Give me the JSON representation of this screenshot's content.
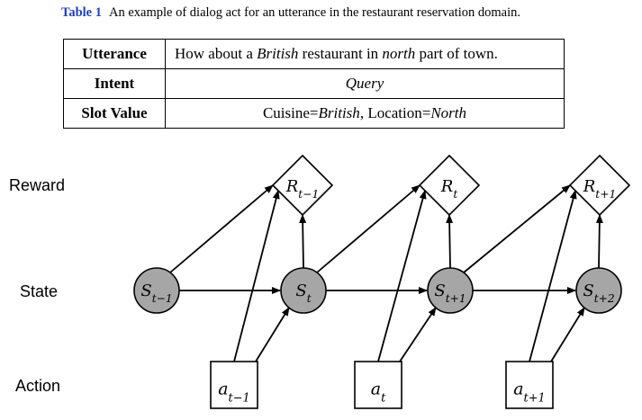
{
  "caption": {
    "label": "Table 1",
    "text": "An example of dialog act for an utterance in the restaurant reservation domain."
  },
  "table": {
    "utterance": {
      "header": "Utterance",
      "part1": "How about a ",
      "cuisine": "British",
      "part2": " restaurant in ",
      "location": "north",
      "part3": " part of town."
    },
    "intent": {
      "header": "Intent",
      "value": "Query"
    },
    "slot": {
      "header": "Slot Value",
      "cuisine_key": "Cuisine=",
      "cuisine_val": "British",
      "sep": ", ",
      "location_key": "Location=",
      "location_val": "North"
    }
  },
  "diagram": {
    "row_labels": {
      "reward": "Reward",
      "state": "State",
      "action": "Action"
    },
    "states": [
      {
        "base": "S",
        "sub": "t−1"
      },
      {
        "base": "S",
        "sub": "t"
      },
      {
        "base": "S",
        "sub": "t+1"
      },
      {
        "base": "S",
        "sub": "t+2"
      }
    ],
    "rewards": [
      {
        "base": "R",
        "sub": "t−1"
      },
      {
        "base": "R",
        "sub": "t"
      },
      {
        "base": "R",
        "sub": "t+1"
      }
    ],
    "actions": [
      {
        "base": "a",
        "sub": "t−1"
      },
      {
        "base": "a",
        "sub": "t"
      },
      {
        "base": "a",
        "sub": "t+1"
      }
    ],
    "colors": {
      "state_fill": "#a6a6a6",
      "stroke": "#000000"
    }
  }
}
